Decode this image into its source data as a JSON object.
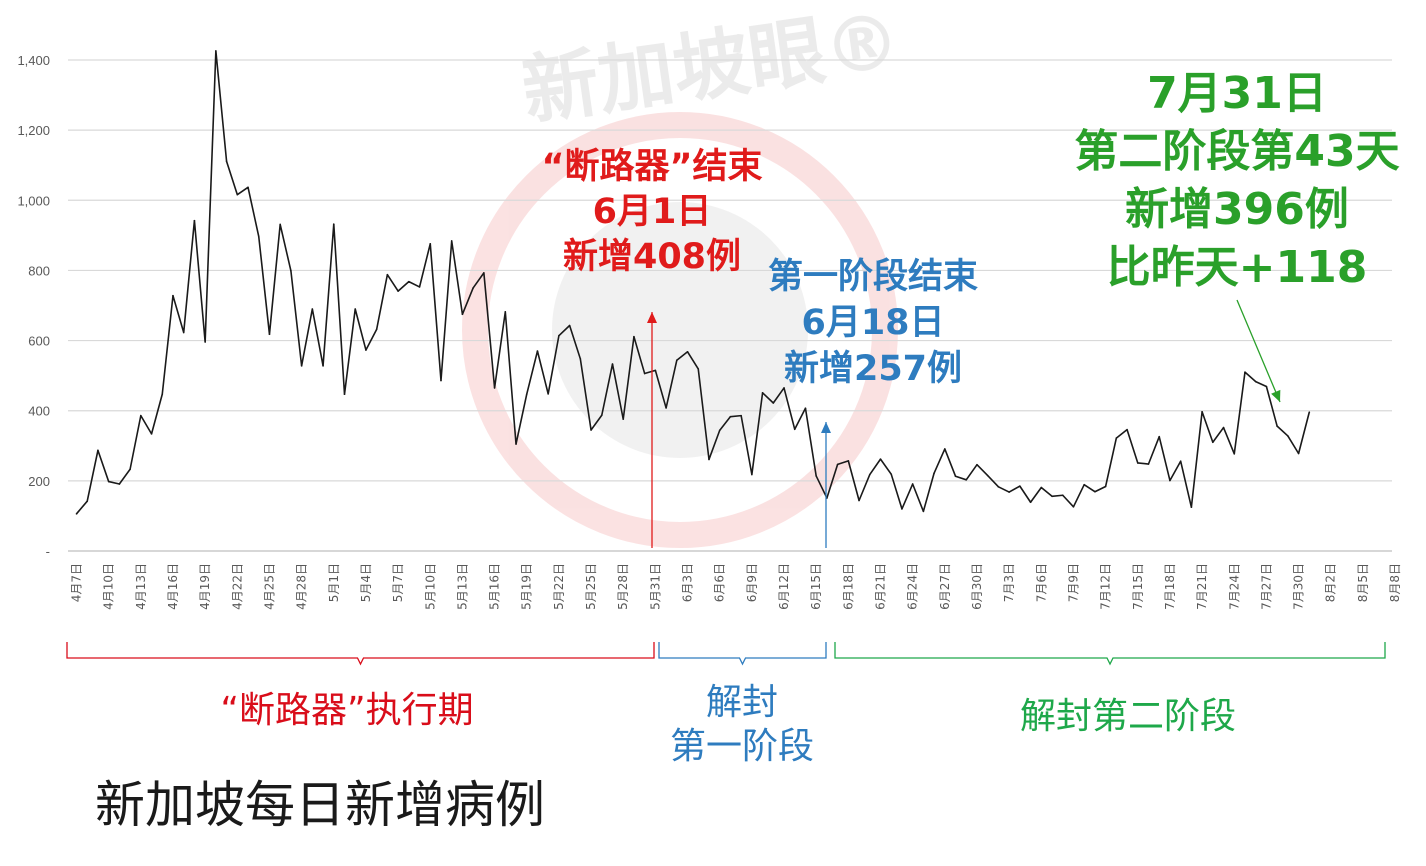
{
  "watermark": "新加坡眼®",
  "chart_data": {
    "type": "line",
    "title": "新加坡每日新增病例",
    "ylim": [
      0,
      1400
    ],
    "yticks": [
      0,
      200,
      400,
      600,
      800,
      1000,
      1200,
      1400
    ],
    "ytick_labels": [
      "-",
      "200",
      "400",
      "600",
      "800",
      "1,000",
      "1,200",
      "1,400"
    ],
    "grid": true,
    "x_start": "4月7日",
    "x_tick_labels": [
      "4月7日",
      "4月10日",
      "4月13日",
      "4月16日",
      "4月19日",
      "4月22日",
      "4月25日",
      "4月28日",
      "5月1日",
      "5月4日",
      "5月7日",
      "5月10日",
      "5月13日",
      "5月16日",
      "5月19日",
      "5月22日",
      "5月25日",
      "5月28日",
      "5月31日",
      "6月3日",
      "6月6日",
      "6月9日",
      "6月12日",
      "6月15日",
      "6月18日",
      "6月21日",
      "6月24日",
      "6月27日",
      "6月30日",
      "7月3日",
      "7月6日",
      "7月9日",
      "7月12日",
      "7月15日",
      "7月18日",
      "7月21日",
      "7月24日",
      "7月27日",
      "7月30日",
      "8月2日",
      "8月5日",
      "8月8日"
    ],
    "series": [
      {
        "color": "#1a1a1a",
        "values": [
          106,
          142,
          287,
          198,
          191,
          233,
          386,
          334,
          447,
          728,
          623,
          942,
          596,
          1426,
          1111,
          1016,
          1037,
          897,
          618,
          931,
          799,
          528,
          690,
          528,
          932,
          447,
          690,
          573,
          632,
          788,
          741,
          768,
          753,
          876,
          486,
          884,
          675,
          750,
          793,
          465,
          682,
          305,
          447,
          570,
          448,
          614,
          643,
          548,
          345,
          387,
          533,
          376,
          611,
          506,
          515,
          408,
          544,
          568,
          519,
          261,
          344,
          383,
          386,
          218,
          451,
          422,
          465,
          347,
          407,
          214,
          151,
          247,
          257,
          144,
          218,
          262,
          219,
          120,
          191,
          113,
          222,
          291,
          213,
          203,
          246,
          215,
          183,
          168,
          185,
          139,
          181,
          156,
          159,
          126,
          189,
          169,
          184,
          322,
          346,
          251,
          248,
          326,
          201,
          256,
          125,
          397,
          310,
          352,
          277,
          510,
          483,
          469,
          356,
          328,
          278,
          396
        ]
      }
    ],
    "periods": [
      {
        "label": "“断路器”执行期",
        "color": "#d90d1a",
        "from": "4月7日",
        "to": "6月1日"
      },
      {
        "label_lines": [
          "解封",
          "第一阶段"
        ],
        "color": "#2e7cbf",
        "from": "6月2日",
        "to": "6月18日"
      },
      {
        "label": "解封第二阶段",
        "color": "#1ea84a",
        "from": "6月19日",
        "to": "8月8日"
      }
    ],
    "annotations": [
      {
        "lines": [
          "“断路器”结束",
          "6月1日",
          "新增408例"
        ],
        "color": "#e01b1b",
        "date": "6月1日"
      },
      {
        "lines": [
          "第一阶段结束",
          "6月18日",
          "新增257例"
        ],
        "color": "#2e7cbf",
        "date": "6月18日"
      },
      {
        "lines": [
          "7月31日",
          "第二阶段第43天",
          "新增396例",
          "比昨天+118"
        ],
        "color": "#2aa02a",
        "date": "7月31日"
      }
    ]
  }
}
